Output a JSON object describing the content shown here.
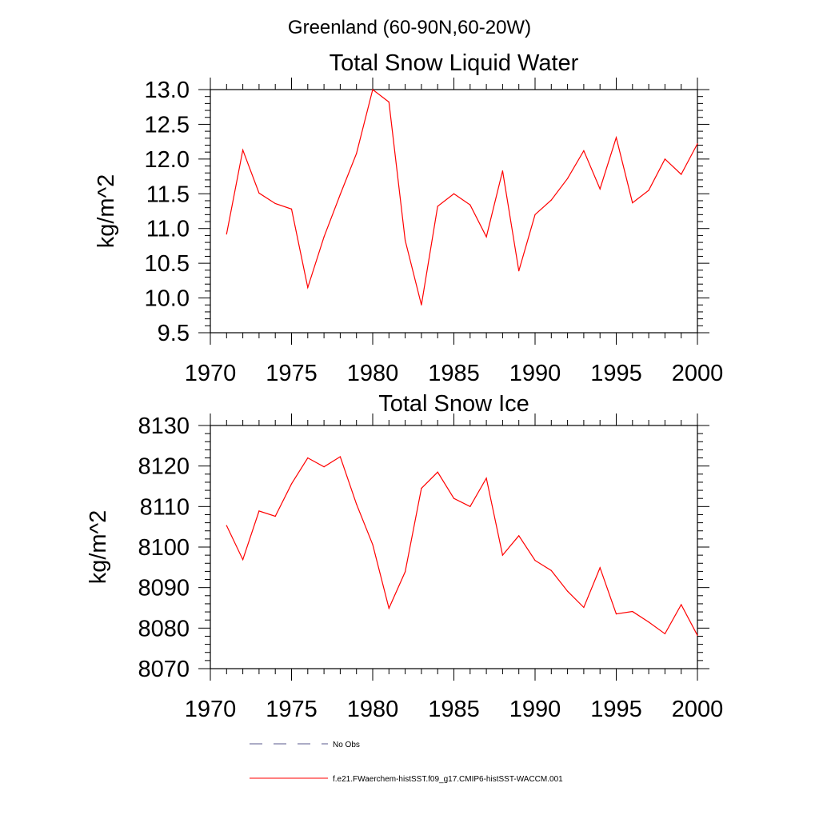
{
  "figure": {
    "suptitle": "Greenland (60-90N,60-20W)"
  },
  "legend": {
    "entries": [
      {
        "label": "No Obs",
        "color": "#5a5a8c",
        "style": "dashed"
      },
      {
        "label": "f.e21.FWaerchem-histSST.f09_g17.CMIP6-histSST-WACCM.001",
        "color": "#ff0000",
        "style": "solid"
      }
    ]
  },
  "chart_data": [
    {
      "type": "line",
      "title": "Total Snow Liquid Water",
      "xlabel": "",
      "ylabel": "kg/m^2",
      "xlim": [
        1970,
        2000
      ],
      "ylim": [
        9.5,
        13.0
      ],
      "xticks": [
        1970,
        1975,
        1980,
        1985,
        1990,
        1995,
        2000
      ],
      "xtick_labels": [
        "1970",
        "1975",
        "1980",
        "1985",
        "1990",
        "1995",
        "2000"
      ],
      "yticks": [
        9.5,
        10.0,
        10.5,
        11.0,
        11.5,
        12.0,
        12.5,
        13.0
      ],
      "ytick_labels": [
        "9.5",
        "10.0",
        "10.5",
        "11.0",
        "11.5",
        "12.0",
        "12.5",
        "13.0"
      ],
      "grid": false,
      "x": [
        1971,
        1972,
        1973,
        1974,
        1975,
        1976,
        1977,
        1978,
        1979,
        1980,
        1981,
        1982,
        1983,
        1984,
        1985,
        1986,
        1987,
        1988,
        1989,
        1990,
        1991,
        1992,
        1993,
        1994,
        1995,
        1996,
        1997,
        1998,
        1999,
        2000
      ],
      "series": [
        {
          "name": "f.e21.FWaerchem-histSST.f09_g17.CMIP6-histSST-WACCM.001",
          "color": "#ff0000",
          "values": [
            10.92,
            12.13,
            11.51,
            11.36,
            11.28,
            10.15,
            10.88,
            11.49,
            12.08,
            13.0,
            12.82,
            10.83,
            9.9,
            11.32,
            11.5,
            11.34,
            10.88,
            11.83,
            10.39,
            11.2,
            11.41,
            11.72,
            12.12,
            11.57,
            12.31,
            11.37,
            11.55,
            12.0,
            11.78,
            12.22
          ]
        }
      ]
    },
    {
      "type": "line",
      "title": "Total Snow Ice",
      "xlabel": "",
      "ylabel": "kg/m^2",
      "xlim": [
        1970,
        2000
      ],
      "ylim": [
        8070,
        8130
      ],
      "xticks": [
        1970,
        1975,
        1980,
        1985,
        1990,
        1995,
        2000
      ],
      "xtick_labels": [
        "1970",
        "1975",
        "1980",
        "1985",
        "1990",
        "1995",
        "2000"
      ],
      "yticks": [
        8070,
        8080,
        8090,
        8100,
        8110,
        8120,
        8130
      ],
      "ytick_labels": [
        "8070",
        "8080",
        "8090",
        "8100",
        "8110",
        "8120",
        "8130"
      ],
      "grid": false,
      "x": [
        1971,
        1972,
        1973,
        1974,
        1975,
        1976,
        1977,
        1978,
        1979,
        1980,
        1981,
        1982,
        1983,
        1984,
        1985,
        1986,
        1987,
        1988,
        1989,
        1990,
        1991,
        1992,
        1993,
        1994,
        1995,
        1996,
        1997,
        1998,
        1999,
        2000
      ],
      "series": [
        {
          "name": "f.e21.FWaerchem-histSST.f09_g17.CMIP6-histSST-WACCM.001",
          "color": "#ff0000",
          "values": [
            8105.3,
            8096.9,
            8108.9,
            8107.6,
            8115.6,
            8122.0,
            8119.8,
            8122.3,
            8110.6,
            8100.6,
            8084.9,
            8093.9,
            8114.5,
            8118.5,
            8112.0,
            8110.0,
            8117.0,
            8098.0,
            8102.8,
            8096.7,
            8094.2,
            8089.1,
            8085.1,
            8094.9,
            8083.5,
            8084.1,
            8081.5,
            8078.6,
            8085.8,
            8078.2
          ]
        }
      ]
    }
  ]
}
